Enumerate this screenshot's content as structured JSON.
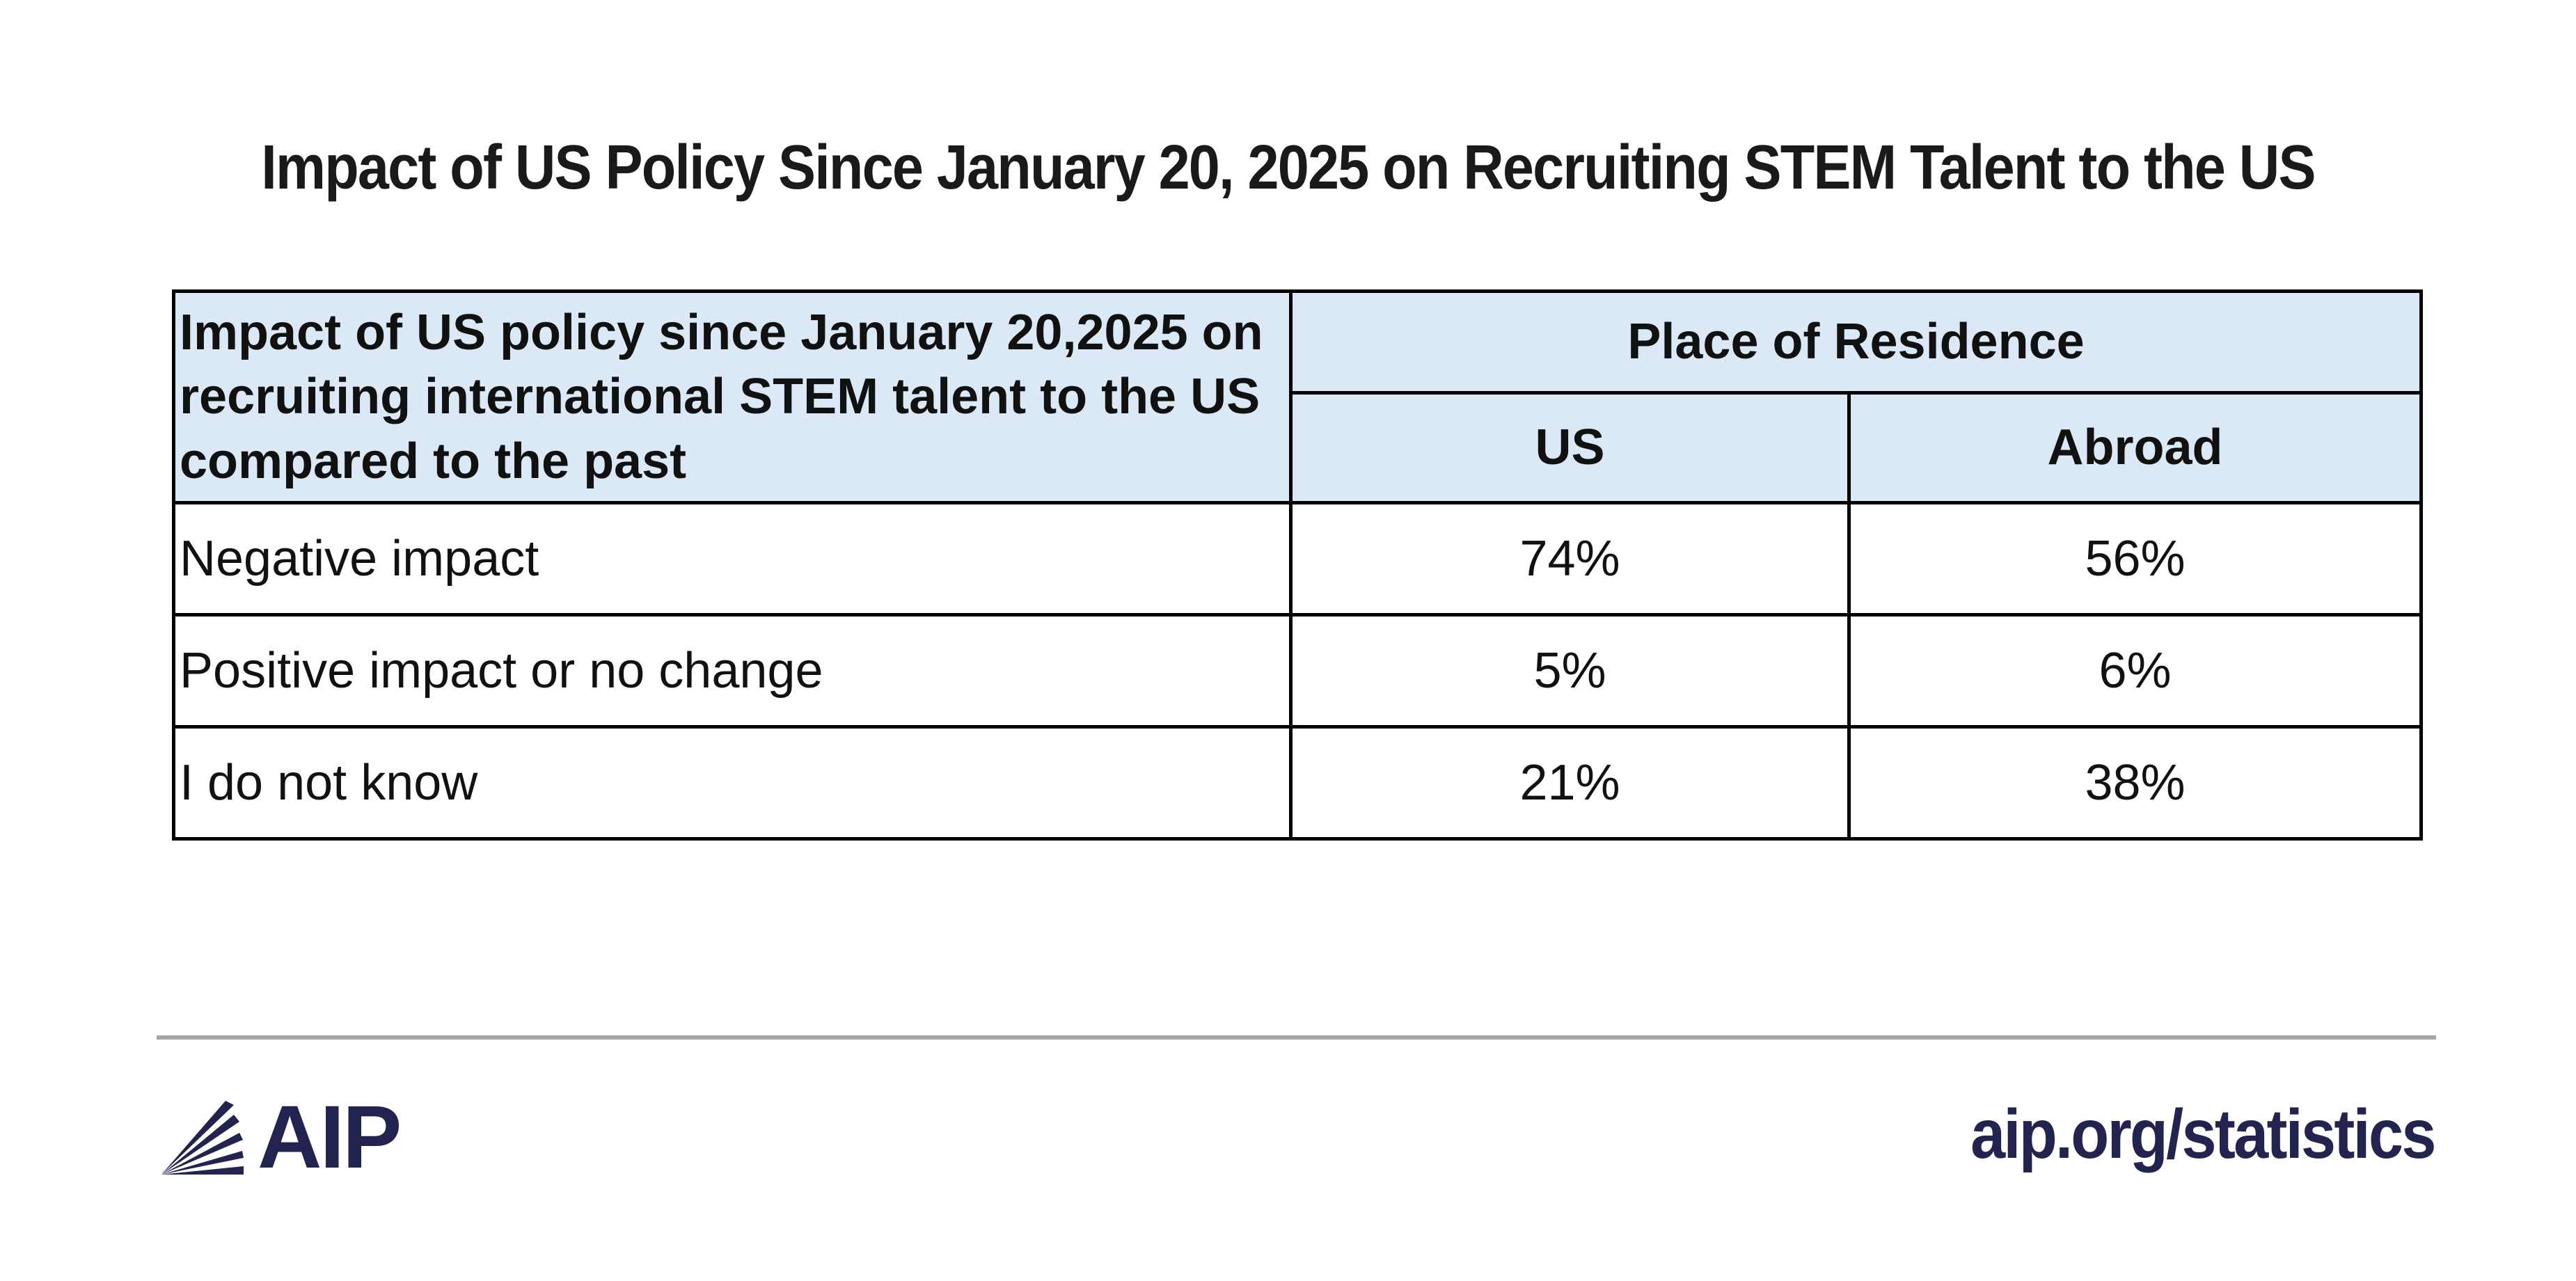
{
  "chart_data": {
    "type": "table",
    "title": "Impact of US Policy Since January 20, 2025 on Recruiting STEM Talent to the US",
    "row_header": "Impact of US policy since January 20,2025 on recruiting international STEM talent to the US compared to the past",
    "column_group": "Place of Residence",
    "columns": [
      "US",
      "Abroad"
    ],
    "rows": [
      {
        "label": "Negative impact",
        "values": [
          "74%",
          "56%"
        ]
      },
      {
        "label": "Positive impact or no change",
        "values": [
          "5%",
          "6%"
        ]
      },
      {
        "label": "I do not know",
        "values": [
          "21%",
          "38%"
        ]
      }
    ]
  },
  "footer": {
    "logo_text": "AIP",
    "site": "aip.org/statistics"
  },
  "colors": {
    "header_fill": "#dbe9f6",
    "brand_navy": "#22234f",
    "divider": "#a6a6a6"
  },
  "icons": {
    "logo": "aip-rays-icon"
  }
}
